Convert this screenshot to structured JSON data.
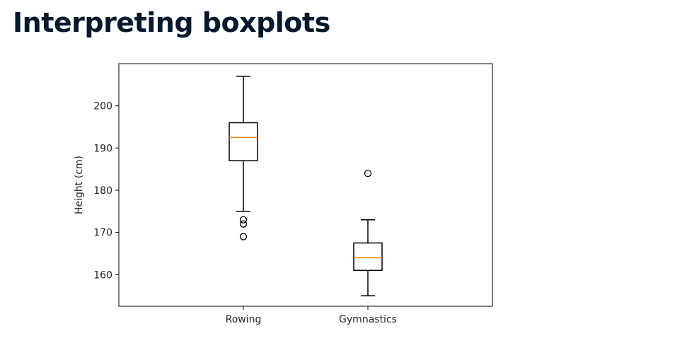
{
  "slide": {
    "title": "Interpreting boxplots"
  },
  "chart_data": {
    "type": "boxplot",
    "title": "",
    "xlabel": "",
    "ylabel": "Height (cm)",
    "categories": [
      "Rowing",
      "Gymnastics"
    ],
    "ylim": [
      152.5,
      210
    ],
    "yticks": [
      160,
      170,
      180,
      190,
      200
    ],
    "grid": false,
    "box_color": "#000000",
    "median_color": "#ff7f0e",
    "boxes": [
      {
        "category": "Rowing",
        "whisker_low": 175,
        "q1": 187,
        "median": 192.5,
        "q3": 196,
        "whisker_high": 207,
        "outliers": [
          173,
          172,
          169
        ]
      },
      {
        "category": "Gymnastics",
        "whisker_low": 155,
        "q1": 161,
        "median": 164,
        "q3": 167.5,
        "whisker_high": 173,
        "outliers": [
          184
        ]
      }
    ]
  }
}
